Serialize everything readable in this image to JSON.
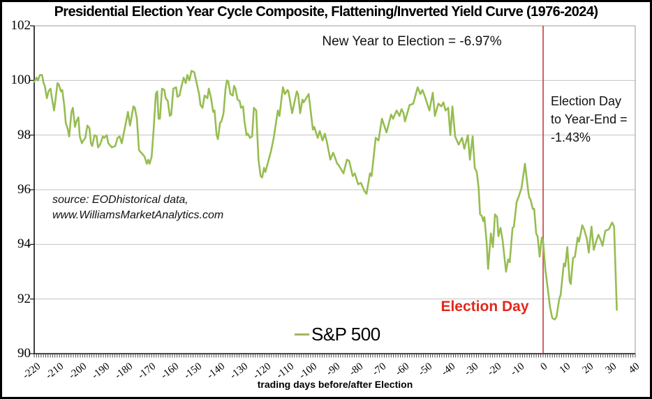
{
  "title": "Presidential Election Year Cycle Composite, Flattening/Inverted Yield Curve (1976-2024)",
  "annotations": {
    "new_year_to_election": "New Year to Election = -6.97%",
    "post_election_line1": "Election Day",
    "post_election_line2": "to Year-End =",
    "post_election_line3": "-1.43%",
    "election_day_label": "Election Day",
    "source_line1": "source: EODhistorical data,",
    "source_line2": "www.WilliamsMarketAnalytics.com"
  },
  "legend": {
    "label": "S&P 500"
  },
  "x_axis_title": "trading days before/after Election",
  "colors": {
    "series_line": "#96bd51",
    "legend_dash": "#a3b55e",
    "election_line": "#c83c3c",
    "election_text": "#e0291d",
    "grid": "#c3c3c3",
    "plot_border": "#9a9a9a",
    "axis": "#111111"
  },
  "chart_data": {
    "type": "line",
    "title": "Presidential Election Year Cycle Composite, Flattening/Inverted Yield Curve (1976-2024)",
    "xlabel": "trading days before/after Election",
    "ylabel": "",
    "xlim": [
      -221,
      40
    ],
    "ylim": [
      90,
      102
    ],
    "grid": "horizontal",
    "legend_position": "bottom-center-inside",
    "x_ticks": [
      -220,
      -210,
      -200,
      -190,
      -180,
      -170,
      -160,
      -150,
      -140,
      -130,
      -120,
      -110,
      -100,
      -90,
      -80,
      -70,
      -60,
      -50,
      -40,
      -30,
      -20,
      -10,
      0,
      10,
      20,
      30,
      40
    ],
    "y_ticks": [
      90,
      92,
      94,
      96,
      98,
      100,
      102
    ],
    "minor_x_tick_step": 1,
    "election_day_x": 0,
    "stats": {
      "new_year_to_election_pct": -6.97,
      "election_to_year_end_pct": -1.43
    },
    "series": [
      {
        "name": "S&P 500",
        "points": [
          [
            -221,
            99.95
          ],
          [
            -220,
            100.1
          ],
          [
            -219.4,
            100
          ],
          [
            -218.5,
            100.2
          ],
          [
            -217.6,
            100.2
          ],
          [
            -216.9,
            99.9
          ],
          [
            -216.4,
            99.8
          ],
          [
            -215.5,
            99.35
          ],
          [
            -214.8,
            99.6
          ],
          [
            -213.9,
            99.7
          ],
          [
            -213.3,
            99.35
          ],
          [
            -212.4,
            98.9
          ],
          [
            -211.8,
            99.25
          ],
          [
            -210.9,
            99.9
          ],
          [
            -210.3,
            99.85
          ],
          [
            -209.4,
            99.6
          ],
          [
            -208.8,
            99.65
          ],
          [
            -207.9,
            99.05
          ],
          [
            -207.3,
            98.45
          ],
          [
            -206.4,
            98.2
          ],
          [
            -205.8,
            97.95
          ],
          [
            -204.8,
            98.85
          ],
          [
            -204.2,
            99
          ],
          [
            -203.3,
            98.3
          ],
          [
            -202.7,
            98.5
          ],
          [
            -201.8,
            98.65
          ],
          [
            -201.2,
            97.95
          ],
          [
            -200.3,
            97.7
          ],
          [
            -199.7,
            97.8
          ],
          [
            -198.8,
            97.9
          ],
          [
            -197.9,
            98.35
          ],
          [
            -197,
            98.25
          ],
          [
            -196.4,
            97.7
          ],
          [
            -195.8,
            97.6
          ],
          [
            -194.8,
            98
          ],
          [
            -193.9,
            97.95
          ],
          [
            -193.3,
            97.55
          ],
          [
            -192.4,
            97.65
          ],
          [
            -191.2,
            97.95
          ],
          [
            -190.6,
            97.9
          ],
          [
            -189.5,
            98
          ],
          [
            -188.8,
            97.7
          ],
          [
            -187.3,
            97.55
          ],
          [
            -185.8,
            97.6
          ],
          [
            -184.8,
            97.9
          ],
          [
            -183.9,
            97.95
          ],
          [
            -183,
            97.7
          ],
          [
            -181.2,
            98.45
          ],
          [
            -180.3,
            98.85
          ],
          [
            -179.4,
            98.35
          ],
          [
            -177.9,
            99.05
          ],
          [
            -177.3,
            99
          ],
          [
            -176.4,
            98.6
          ],
          [
            -175.5,
            97.45
          ],
          [
            -174.5,
            97.35
          ],
          [
            -173.9,
            97.3
          ],
          [
            -173,
            97.2
          ],
          [
            -172.1,
            96.95
          ],
          [
            -171.5,
            97.1
          ],
          [
            -170.9,
            96.95
          ],
          [
            -170,
            97.2
          ],
          [
            -169.1,
            98.25
          ],
          [
            -168.2,
            99.5
          ],
          [
            -167.6,
            99.6
          ],
          [
            -167,
            98.6
          ],
          [
            -166.4,
            98.6
          ],
          [
            -165.5,
            99.7
          ],
          [
            -164.5,
            99.65
          ],
          [
            -163.9,
            99.35
          ],
          [
            -163,
            99.25
          ],
          [
            -162.1,
            98.7
          ],
          [
            -161.5,
            98.75
          ],
          [
            -160.6,
            99.7
          ],
          [
            -159.4,
            99.75
          ],
          [
            -158.8,
            99.4
          ],
          [
            -157.9,
            99.45
          ],
          [
            -157,
            99.8
          ],
          [
            -156.1,
            100.1
          ],
          [
            -155.2,
            99.9
          ],
          [
            -154.5,
            100.2
          ],
          [
            -153.6,
            100
          ],
          [
            -152.7,
            100.35
          ],
          [
            -151.5,
            100.3
          ],
          [
            -150.3,
            99.85
          ],
          [
            -149.4,
            99.5
          ],
          [
            -148.8,
            99.1
          ],
          [
            -147.9,
            99
          ],
          [
            -147,
            99.45
          ],
          [
            -145.8,
            99.35
          ],
          [
            -145.2,
            99.7
          ],
          [
            -144.2,
            99.35
          ],
          [
            -143.3,
            98.85
          ],
          [
            -142.7,
            98.9
          ],
          [
            -141.8,
            98
          ],
          [
            -141.2,
            97.85
          ],
          [
            -140.3,
            98.45
          ],
          [
            -139.7,
            98.5
          ],
          [
            -138.8,
            98.8
          ],
          [
            -137.9,
            99.7
          ],
          [
            -137.3,
            100
          ],
          [
            -136.7,
            99.95
          ],
          [
            -135.8,
            99.5
          ],
          [
            -134.8,
            99.45
          ],
          [
            -134.2,
            99.8
          ],
          [
            -133.6,
            99.7
          ],
          [
            -132.7,
            99.3
          ],
          [
            -131.8,
            99.25
          ],
          [
            -131.2,
            99
          ],
          [
            -130.3,
            99.05
          ],
          [
            -129.7,
            98.5
          ],
          [
            -128.8,
            98
          ],
          [
            -128.2,
            98.05
          ],
          [
            -127.3,
            97.9
          ],
          [
            -126.4,
            97.95
          ],
          [
            -125.6,
            99
          ],
          [
            -124.6,
            98.9
          ],
          [
            -123.6,
            97.1
          ],
          [
            -122.7,
            96.5
          ],
          [
            -122,
            96.45
          ],
          [
            -121.2,
            96.8
          ],
          [
            -120.6,
            96.65
          ],
          [
            -118.2,
            97.4
          ],
          [
            -117,
            97.9
          ],
          [
            -115.2,
            98.9
          ],
          [
            -114.5,
            98.7
          ],
          [
            -113,
            99.75
          ],
          [
            -112.1,
            99.5
          ],
          [
            -111,
            99.65
          ],
          [
            -110.6,
            99.6
          ],
          [
            -109,
            98.8
          ],
          [
            -107,
            99.6
          ],
          [
            -106.4,
            99.5
          ],
          [
            -105.5,
            98.8
          ],
          [
            -104.5,
            99.3
          ],
          [
            -104,
            99.2
          ],
          [
            -101.8,
            99.5
          ],
          [
            -100,
            98.2
          ],
          [
            -99.4,
            98.3
          ],
          [
            -97.9,
            97.9
          ],
          [
            -97,
            98.15
          ],
          [
            -95.8,
            97.8
          ],
          [
            -94.8,
            98.05
          ],
          [
            -93.9,
            97.75
          ],
          [
            -92.4,
            97.1
          ],
          [
            -91.2,
            97.35
          ],
          [
            -90.9,
            97.3
          ],
          [
            -89.4,
            96.95
          ],
          [
            -88.8,
            96.9
          ],
          [
            -86.7,
            96.6
          ],
          [
            -85.2,
            97.1
          ],
          [
            -84.2,
            97.05
          ],
          [
            -82.7,
            96.5
          ],
          [
            -81.8,
            96.6
          ],
          [
            -80.3,
            96.2
          ],
          [
            -79.1,
            96.25
          ],
          [
            -77.6,
            95.95
          ],
          [
            -76.7,
            95.85
          ],
          [
            -75.2,
            96.6
          ],
          [
            -74.5,
            96.5
          ],
          [
            -72.7,
            97.9
          ],
          [
            -71.5,
            97.8
          ],
          [
            -70,
            98.6
          ],
          [
            -68,
            98.1
          ],
          [
            -66,
            98.75
          ],
          [
            -65.2,
            98.6
          ],
          [
            -63.6,
            98.9
          ],
          [
            -62.4,
            98.7
          ],
          [
            -61.5,
            98.95
          ],
          [
            -60.6,
            98.8
          ],
          [
            -60,
            98.5
          ],
          [
            -58,
            99.1
          ],
          [
            -56.4,
            99.15
          ],
          [
            -54.5,
            99.75
          ],
          [
            -53.3,
            99.5
          ],
          [
            -52.4,
            99.65
          ],
          [
            -51.5,
            99.45
          ],
          [
            -49.4,
            98.9
          ],
          [
            -47.9,
            99.55
          ],
          [
            -47,
            98.7
          ],
          [
            -45.5,
            99.15
          ],
          [
            -44.2,
            99.05
          ],
          [
            -43.3,
            99.2
          ],
          [
            -42.4,
            98.9
          ],
          [
            -41.2,
            99
          ],
          [
            -40.3,
            98
          ],
          [
            -39.4,
            99.05
          ],
          [
            -38.2,
            97.95
          ],
          [
            -36.7,
            97.65
          ],
          [
            -35.2,
            97.9
          ],
          [
            -34.2,
            97.5
          ],
          [
            -32.7,
            98
          ],
          [
            -31.8,
            97.1
          ],
          [
            -30.6,
            97.95
          ],
          [
            -29.7,
            96.8
          ],
          [
            -28.8,
            96.65
          ],
          [
            -28,
            96.05
          ],
          [
            -27.4,
            95.1
          ],
          [
            -26.7,
            95.05
          ],
          [
            -26,
            94.85
          ],
          [
            -25.5,
            95
          ],
          [
            -24.5,
            94.05
          ],
          [
            -23.9,
            93.1
          ],
          [
            -22.7,
            94.4
          ],
          [
            -21.8,
            93.9
          ],
          [
            -20.9,
            95.1
          ],
          [
            -20,
            95
          ],
          [
            -19.4,
            94.3
          ],
          [
            -18.5,
            94.6
          ],
          [
            -17.6,
            94.15
          ],
          [
            -16.1,
            93
          ],
          [
            -15.2,
            93.45
          ],
          [
            -14.5,
            93.35
          ],
          [
            -13.3,
            94.6
          ],
          [
            -12.7,
            94.65
          ],
          [
            -11.5,
            95.55
          ],
          [
            -10.6,
            95.75
          ],
          [
            -9.4,
            96.05
          ],
          [
            -7.9,
            96.95
          ],
          [
            -6.4,
            95.9
          ],
          [
            -6,
            95.7
          ],
          [
            -5.5,
            95.65
          ],
          [
            -4.5,
            95.3
          ],
          [
            -3.9,
            95.3
          ],
          [
            -3,
            94.4
          ],
          [
            -2.4,
            94.3
          ],
          [
            -1.5,
            93.55
          ],
          [
            -0.6,
            94.25
          ],
          [
            0,
            94.1
          ],
          [
            1,
            93.05
          ],
          [
            2,
            92.4
          ],
          [
            3,
            91.7
          ],
          [
            4,
            91.3
          ],
          [
            5,
            91.25
          ],
          [
            5.8,
            91.35
          ],
          [
            7,
            92
          ],
          [
            7.6,
            92.15
          ],
          [
            9,
            93.3
          ],
          [
            9.6,
            93.2
          ],
          [
            10.5,
            93.9
          ],
          [
            11.5,
            92.65
          ],
          [
            12,
            92.55
          ],
          [
            13,
            93.5
          ],
          [
            13.8,
            93.55
          ],
          [
            15,
            94.25
          ],
          [
            15.6,
            94.1
          ],
          [
            17,
            94.7
          ],
          [
            17.8,
            94.55
          ],
          [
            19,
            94.2
          ],
          [
            19.8,
            93.7
          ],
          [
            21,
            94.65
          ],
          [
            22,
            93.8
          ],
          [
            23,
            94.1
          ],
          [
            24,
            94.35
          ],
          [
            24.8,
            94.2
          ],
          [
            25.8,
            93.95
          ],
          [
            27,
            94.5
          ],
          [
            28.5,
            94.55
          ],
          [
            30,
            94.8
          ],
          [
            30.8,
            94.65
          ],
          [
            32,
            91.6
          ]
        ]
      }
    ]
  }
}
